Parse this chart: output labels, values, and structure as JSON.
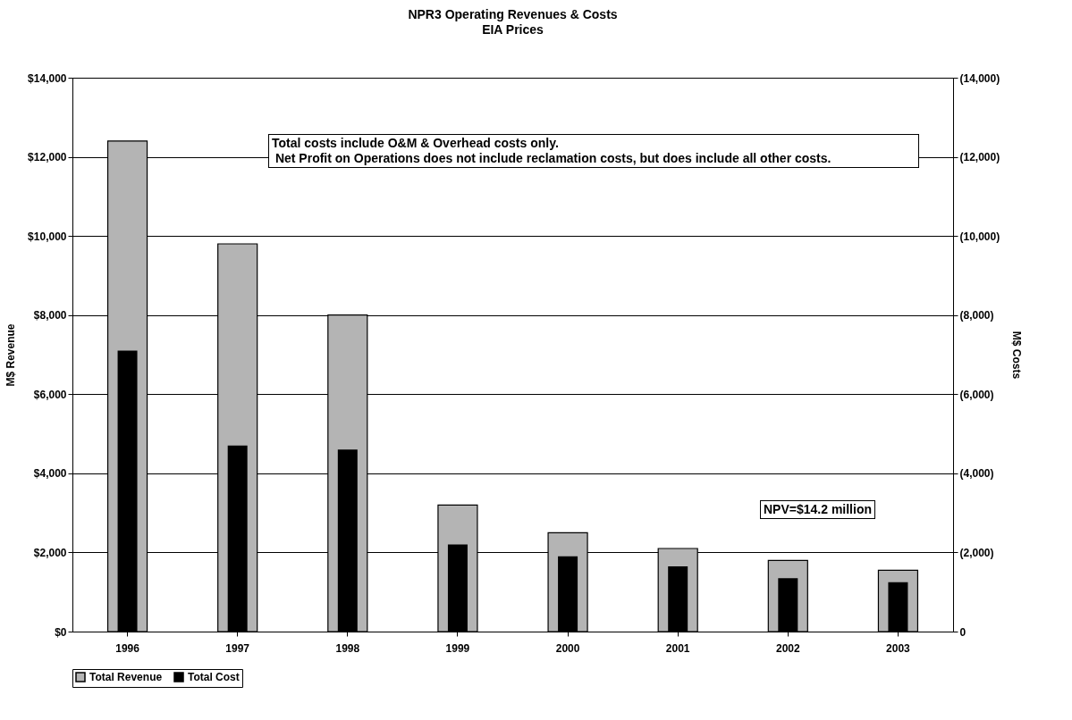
{
  "chart_data": {
    "type": "bar",
    "title": "NPR3 Operating Revenues & Costs",
    "subtitle": "EIA Prices",
    "ylabel": "M$ Revenue",
    "y2label": "M$ Costs",
    "categories": [
      "1996",
      "1997",
      "1998",
      "1999",
      "2000",
      "2001",
      "2002",
      "2003"
    ],
    "series": [
      {
        "name": "Total Revenue",
        "color": "#b4b4b4",
        "values": [
          12400,
          9800,
          8000,
          3200,
          2500,
          2100,
          1800,
          1550
        ]
      },
      {
        "name": "Total Cost",
        "color": "#000000",
        "axis": "y2",
        "values": [
          7100,
          4700,
          4600,
          2200,
          1900,
          1650,
          1350,
          1250
        ]
      }
    ],
    "ylim": [
      0,
      14000
    ],
    "yticks": [
      {
        "value": 0,
        "label": "$0"
      },
      {
        "value": 2000,
        "label": "$2,000"
      },
      {
        "value": 4000,
        "label": "$4,000"
      },
      {
        "value": 6000,
        "label": "$6,000"
      },
      {
        "value": 8000,
        "label": "$8,000"
      },
      {
        "value": 10000,
        "label": "$10,000"
      },
      {
        "value": 12000,
        "label": "$12,000"
      },
      {
        "value": 14000,
        "label": "$14,000"
      }
    ],
    "y2lim": [
      0,
      14000
    ],
    "y2ticks": [
      0,
      {
        "value": 2000,
        "label": "(2,000)"
      },
      {
        "value": 4000,
        "label": "(4,000)"
      },
      {
        "value": 6000,
        "label": "(6,000)"
      },
      {
        "value": 8000,
        "label": "(8,000)"
      },
      {
        "value": 10000,
        "label": "(10,000)"
      },
      {
        "value": 12000,
        "label": "(12,000)"
      },
      {
        "value": 14000,
        "label": "(14,000)"
      }
    ],
    "grid": "y",
    "legend": "bottom",
    "annotations": [
      "Total costs include O&M & Overhead costs only.\n Net Profit on Operations does not include reclamation costs, but does include all other costs.",
      "NPV=$14.2 million"
    ]
  }
}
